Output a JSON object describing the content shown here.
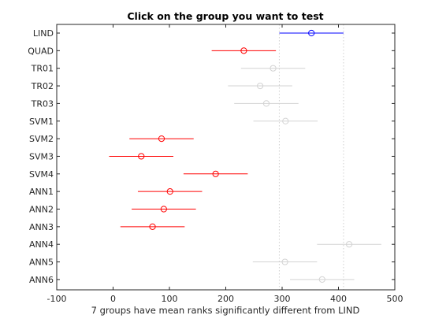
{
  "chart_data": {
    "type": "scatter",
    "title": "Click on the group you want to test",
    "xlabel": "7 groups have mean ranks significantly different from LIND",
    "ylabel": "",
    "xlim": [
      -100,
      500
    ],
    "xticks": [
      -100,
      0,
      100,
      200,
      300,
      400,
      500
    ],
    "grid": false,
    "reference_lines": [
      295,
      409
    ],
    "colors": {
      "selected": "#0000ff",
      "significant": "#ff0000",
      "not_significant": "#d3d3d3",
      "axis": "#262626",
      "reference": "#d0d0d0"
    },
    "groups": [
      {
        "name": "LIND",
        "mean": 352,
        "lower": 295,
        "upper": 409,
        "status": "selected"
      },
      {
        "name": "QUAD",
        "mean": 232,
        "lower": 175,
        "upper": 289,
        "status": "significant"
      },
      {
        "name": "TR01",
        "mean": 284,
        "lower": 227,
        "upper": 341,
        "status": "not_significant"
      },
      {
        "name": "TR02",
        "mean": 261,
        "lower": 204,
        "upper": 318,
        "status": "not_significant"
      },
      {
        "name": "TR03",
        "mean": 272,
        "lower": 215,
        "upper": 329,
        "status": "not_significant"
      },
      {
        "name": "SVM1",
        "mean": 306,
        "lower": 249,
        "upper": 363,
        "status": "not_significant"
      },
      {
        "name": "SVM2",
        "mean": 86,
        "lower": 29,
        "upper": 143,
        "status": "significant"
      },
      {
        "name": "SVM3",
        "mean": 50,
        "lower": -7,
        "upper": 107,
        "status": "significant"
      },
      {
        "name": "SVM4",
        "mean": 182,
        "lower": 125,
        "upper": 239,
        "status": "significant"
      },
      {
        "name": "ANN1",
        "mean": 101,
        "lower": 44,
        "upper": 158,
        "status": "significant"
      },
      {
        "name": "ANN2",
        "mean": 90,
        "lower": 33,
        "upper": 147,
        "status": "significant"
      },
      {
        "name": "ANN3",
        "mean": 70,
        "lower": 13,
        "upper": 127,
        "status": "significant"
      },
      {
        "name": "ANN4",
        "mean": 419,
        "lower": 362,
        "upper": 476,
        "status": "not_significant"
      },
      {
        "name": "ANN5",
        "mean": 305,
        "lower": 248,
        "upper": 362,
        "status": "not_significant"
      },
      {
        "name": "ANN6",
        "mean": 371,
        "lower": 314,
        "upper": 428,
        "status": "not_significant"
      }
    ]
  }
}
